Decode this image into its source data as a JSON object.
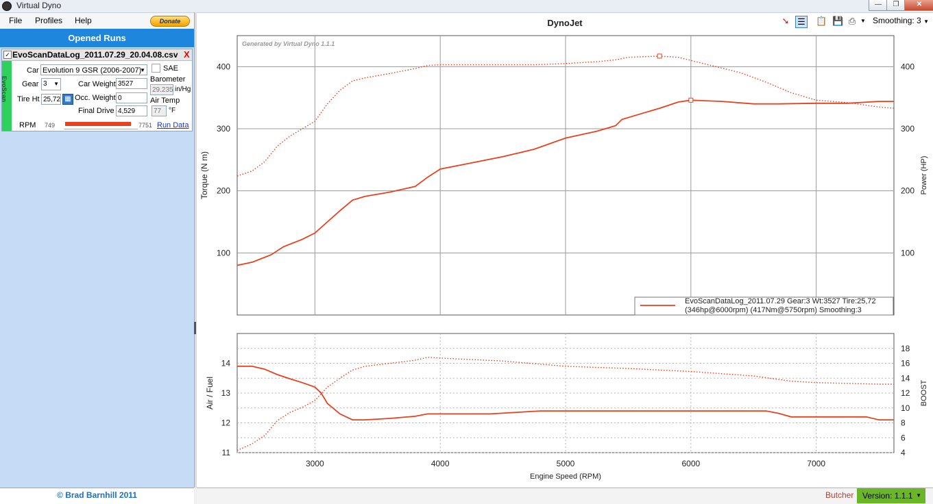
{
  "window": {
    "title": "Virtual Dyno"
  },
  "menu": {
    "file": "File",
    "profiles": "Profiles",
    "help": "Help",
    "donate": "Donate"
  },
  "sidebar": {
    "header": "Opened Runs",
    "run": {
      "filename": "EvoScanDataLog_2011.07.29_20.04.08.csv",
      "source_tab": "EvoScan",
      "car_label": "Car",
      "car_value": "Evolution 9 GSR (2006-2007)",
      "sae_label": "SAE",
      "gear_label": "Gear",
      "gear_value": "3",
      "car_weight_label": "Car Weight",
      "car_weight_value": "3527",
      "barometer_label": "Barometer",
      "barometer_value": "29.235",
      "barometer_unit": "in/Hg",
      "tire_label": "Tire Ht",
      "tire_value": "25,72",
      "occ_weight_label": "Occ. Weight",
      "occ_weight_value": "0",
      "air_temp_label": "Air Temp",
      "air_temp_value": "77",
      "air_temp_unit": "°F",
      "final_drive_label": "Final Drive",
      "final_drive_value": "4,529",
      "rpm_label": "RPM",
      "rpm_min": "749",
      "rpm_max": "7751",
      "run_data_link": "Run Data"
    },
    "copyright": "© Brad Barnhill 2011"
  },
  "toolbar": {
    "smoothing": "Smoothing: 3"
  },
  "status": {
    "user": "Butcher",
    "version": "Version: 1.1.1"
  },
  "colors": {
    "series": "#e8401c",
    "accent": "#1e86dc",
    "tab": "#2ed15b"
  },
  "chart_data": [
    {
      "type": "line",
      "title": "DynoJet",
      "watermark": "Generated by Virtual Dyno 1.1.1",
      "ylabel": "Torque (N m)",
      "y2label": "Power (HP)",
      "xlim": [
        2380,
        7620
      ],
      "ylim": [
        0,
        450
      ],
      "yticks": [
        100,
        200,
        300,
        400
      ],
      "legend": {
        "position": "bottom-right",
        "line1": "EvoScanDataLog_2011.07.29 Gear:3 Wt:3527 Tire:25,72",
        "line2": "(346hp@6000rpm) (417Nm@5750rpm) Smoothing:3"
      },
      "series": [
        {
          "name": "Power (HP)",
          "style": "solid",
          "x": [
            2380,
            2500,
            2650,
            2750,
            2900,
            3000,
            3100,
            3200,
            3300,
            3400,
            3600,
            3800,
            3900,
            4000,
            4250,
            4500,
            4750,
            5000,
            5250,
            5400,
            5450,
            5600,
            5750,
            5900,
            6000,
            6250,
            6500,
            6700,
            7000,
            7250,
            7500,
            7620
          ],
          "y": [
            80,
            85,
            97,
            110,
            122,
            132,
            150,
            168,
            185,
            191,
            198,
            207,
            222,
            235,
            245,
            255,
            267,
            285,
            296,
            305,
            315,
            324,
            333,
            343,
            346,
            344,
            340,
            340,
            341,
            341,
            344,
            344
          ]
        },
        {
          "name": "Torque (N m)",
          "style": "dotted",
          "x": [
            2380,
            2500,
            2600,
            2700,
            2800,
            2900,
            3000,
            3100,
            3200,
            3300,
            3400,
            3600,
            3800,
            3900,
            4000,
            4250,
            4500,
            4750,
            5000,
            5250,
            5400,
            5500,
            5750,
            5900,
            6000,
            6200,
            6400,
            6600,
            6800,
            7000,
            7250,
            7500,
            7620
          ],
          "y": [
            224,
            232,
            247,
            272,
            288,
            300,
            312,
            340,
            362,
            377,
            382,
            389,
            397,
            402,
            403,
            403,
            403,
            403,
            405,
            408,
            411,
            415,
            417,
            415,
            410,
            400,
            390,
            375,
            358,
            346,
            342,
            335,
            333
          ]
        }
      ]
    },
    {
      "type": "line",
      "xlabel": "Engine Speed (RPM)",
      "ylabel": "Air / Fuel",
      "y2label": "BOOST",
      "xlim": [
        2380,
        7620
      ],
      "xticks": [
        3000,
        4000,
        5000,
        6000,
        7000
      ],
      "ylim": [
        11,
        15
      ],
      "yticks": [
        11,
        12,
        13,
        14
      ],
      "y2lim": [
        4,
        20
      ],
      "y2ticks": [
        4,
        6,
        8,
        10,
        12,
        14,
        16,
        18
      ],
      "series": [
        {
          "name": "Air / Fuel",
          "style": "solid",
          "axis": "left",
          "x": [
            2380,
            2500,
            2600,
            2700,
            2800,
            2900,
            3000,
            3050,
            3100,
            3200,
            3300,
            3400,
            3600,
            3800,
            3900,
            4000,
            4400,
            4800,
            5000,
            5500,
            6000,
            6600,
            6700,
            6800,
            7000,
            7400,
            7500,
            7620
          ],
          "y": [
            13.9,
            13.9,
            13.8,
            13.62,
            13.48,
            13.35,
            13.2,
            13.0,
            12.65,
            12.3,
            12.1,
            12.1,
            12.15,
            12.22,
            12.3,
            12.3,
            12.3,
            12.4,
            12.4,
            12.4,
            12.4,
            12.4,
            12.32,
            12.2,
            12.2,
            12.2,
            12.1,
            12.1
          ]
        },
        {
          "name": "BOOST",
          "style": "dotted",
          "axis": "right",
          "x": [
            2380,
            2500,
            2600,
            2700,
            2800,
            2900,
            3000,
            3100,
            3200,
            3300,
            3400,
            3600,
            3800,
            3900,
            4000,
            4500,
            5000,
            5500,
            6000,
            6500,
            6800,
            7000,
            7500,
            7620
          ],
          "y": [
            4.3,
            5.2,
            6.3,
            8.3,
            9.4,
            10.1,
            11.0,
            12.8,
            14.0,
            15.1,
            15.6,
            16.0,
            16.4,
            16.8,
            16.7,
            16.3,
            15.6,
            15.3,
            14.9,
            14.3,
            13.6,
            13.4,
            13.2,
            13.2
          ]
        }
      ]
    }
  ]
}
